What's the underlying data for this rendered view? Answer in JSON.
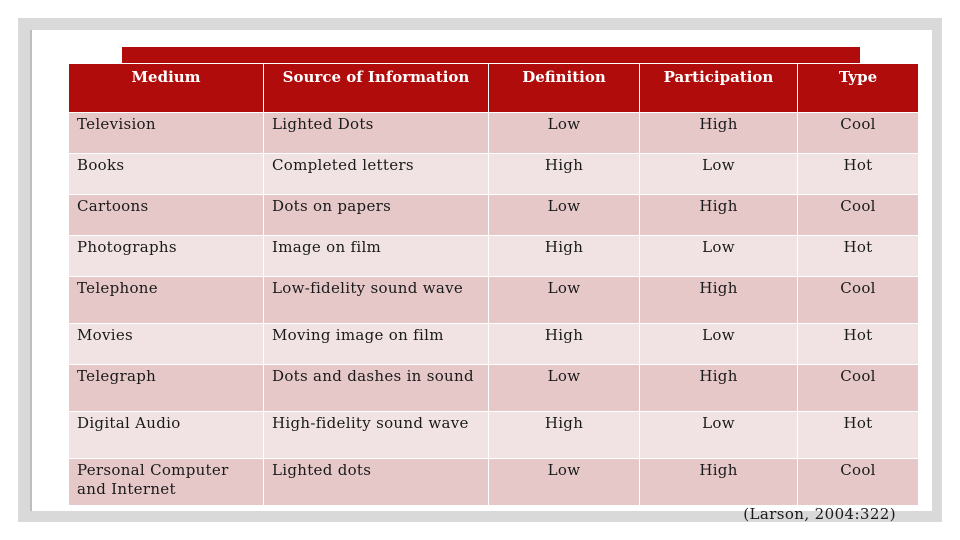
{
  "table": {
    "headers": [
      "Medium",
      "Source of Information",
      "Definition",
      "Participation",
      "Type"
    ],
    "rows": [
      [
        "Television",
        "Lighted Dots",
        "Low",
        "High",
        "Cool"
      ],
      [
        "Books",
        "Completed letters",
        "High",
        "Low",
        "Hot"
      ],
      [
        "Cartoons",
        "Dots on papers",
        "Low",
        "High",
        "Cool"
      ],
      [
        "Photographs",
        "Image on film",
        "High",
        "Low",
        "Hot"
      ],
      [
        "Telephone",
        "Low-fidelity sound wave",
        "Low",
        "High",
        "Cool"
      ],
      [
        "Movies",
        "Moving image on film",
        "High",
        "Low",
        "Hot"
      ],
      [
        "Telegraph",
        "Dots and dashes in sound",
        "Low",
        "High",
        "Cool"
      ],
      [
        "Digital Audio",
        "High-fidelity sound wave",
        "High",
        "Low",
        "Hot"
      ],
      [
        "Personal Computer and Internet",
        "Lighted dots",
        "Low",
        "High",
        "Cool"
      ]
    ]
  },
  "citation": "(Larson, 2004:322)",
  "colors": {
    "header_bg": "#b00c0c",
    "row_dark": "#e6c8c8",
    "row_light": "#f1e3e3"
  }
}
